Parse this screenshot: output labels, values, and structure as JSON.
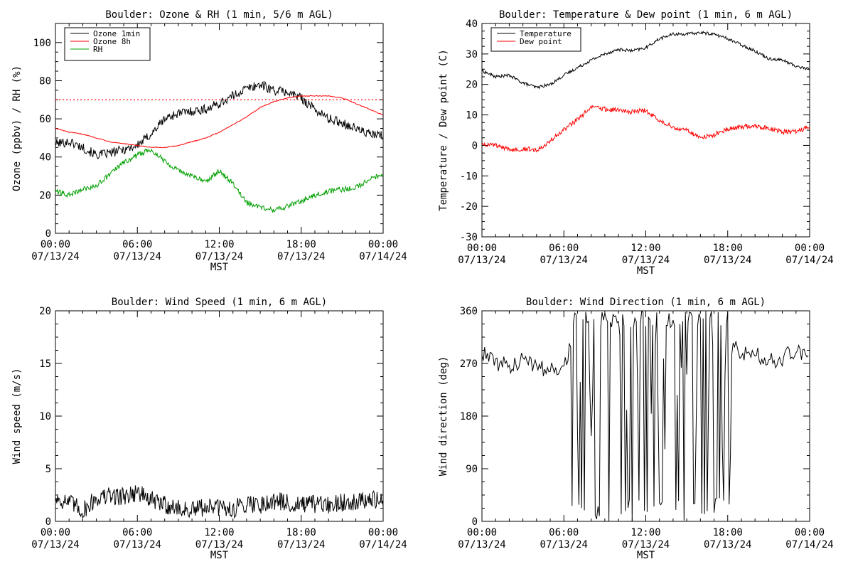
{
  "x_ticks": [
    {
      "time": "00:00",
      "date": "07/13/24"
    },
    {
      "time": "06:00",
      "date": "07/13/24"
    },
    {
      "time": "12:00",
      "date": "07/13/24"
    },
    {
      "time": "18:00",
      "date": "07/13/24"
    },
    {
      "time": "00:00",
      "date": "07/14/24"
    }
  ],
  "x_axis_label": "MST",
  "chart_data": [
    {
      "id": "ozone-rh",
      "type": "line",
      "title": "Boulder: Ozone & RH (1 min, 5/6 m AGL)",
      "xlabel": "MST",
      "ylabel": "Ozone (ppbv) / RH (%)",
      "xlim": [
        "07/13/24 00:00",
        "07/14/24 00:00"
      ],
      "ylim": [
        0,
        110
      ],
      "yticks": [
        0,
        20,
        40,
        60,
        80,
        100
      ],
      "legend": {
        "placement": "top-left",
        "entries": [
          "Ozone 1min",
          "Ozone 8h",
          "RH"
        ]
      },
      "reference_lines": [
        {
          "y": 70,
          "style": "dotted",
          "color": "#ff0000"
        }
      ],
      "x_hours": [
        0,
        1,
        2,
        3,
        4,
        5,
        6,
        7,
        8,
        9,
        10,
        11,
        12,
        13,
        14,
        15,
        16,
        17,
        18,
        19,
        20,
        21,
        22,
        23,
        24
      ],
      "series": [
        {
          "name": "Ozone 1min",
          "color": "#000000",
          "values": [
            47,
            48,
            45,
            41,
            42,
            44,
            46,
            52,
            60,
            63,
            64,
            65,
            68,
            72,
            76,
            78,
            75,
            74,
            71,
            65,
            60,
            58,
            55,
            52,
            51
          ]
        },
        {
          "name": "Ozone 8h",
          "color": "#ff0000",
          "values": [
            55,
            53,
            52,
            50,
            48,
            47,
            46,
            45,
            45,
            46,
            48,
            50,
            53,
            57,
            61,
            66,
            69,
            71,
            72,
            72,
            72,
            71,
            68,
            65,
            62
          ]
        },
        {
          "name": "RH",
          "color": "#00a000",
          "values": [
            22,
            20,
            23,
            25,
            31,
            37,
            41,
            44,
            38,
            33,
            30,
            27,
            33,
            26,
            16,
            14,
            12,
            14,
            17,
            20,
            22,
            23,
            24,
            28,
            31
          ]
        }
      ]
    },
    {
      "id": "temp-dew",
      "type": "line",
      "title": "Boulder: Temperature & Dew point (1 min, 6 m AGL)",
      "xlabel": "MST",
      "ylabel": "Temperature / Dew point (C)",
      "xlim": [
        "07/13/24 00:00",
        "07/14/24 00:00"
      ],
      "ylim": [
        -30,
        40
      ],
      "yticks": [
        -30,
        -20,
        -10,
        0,
        10,
        20,
        30,
        40
      ],
      "legend": {
        "placement": "top-left",
        "entries": [
          "Temperature",
          "Dew point"
        ]
      },
      "x_hours": [
        0,
        1,
        2,
        3,
        4,
        5,
        6,
        7,
        8,
        9,
        10,
        11,
        12,
        13,
        14,
        15,
        16,
        17,
        18,
        19,
        20,
        21,
        22,
        23,
        24
      ],
      "series": [
        {
          "name": "Temperature",
          "color": "#000000",
          "values": [
            24.5,
            22.5,
            23,
            20.5,
            19,
            20,
            23,
            25.5,
            28,
            30,
            31.5,
            31,
            32,
            35,
            36.5,
            36.5,
            37,
            36.5,
            35,
            33,
            31,
            28.5,
            28,
            26,
            25
          ]
        },
        {
          "name": "Dew point",
          "color": "#ff0000",
          "values": [
            0.5,
            0,
            -1.5,
            -1,
            -1.5,
            1.5,
            5,
            8.5,
            12.5,
            12,
            11.5,
            11,
            11.5,
            8,
            6,
            5,
            2.5,
            3.5,
            5.5,
            6,
            6.5,
            5.5,
            4.5,
            4.5,
            6
          ]
        }
      ]
    },
    {
      "id": "wind-speed",
      "type": "line",
      "title": "Boulder: Wind Speed (1 min, 6 m AGL)",
      "xlabel": "MST",
      "ylabel": "Wind speed (m/s)",
      "xlim": [
        "07/13/24 00:00",
        "07/14/24 00:00"
      ],
      "ylim": [
        0,
        20
      ],
      "yticks": [
        0,
        5,
        10,
        15,
        20
      ],
      "x_hours": [
        0,
        1,
        2,
        3,
        4,
        5,
        6,
        7,
        8,
        9,
        10,
        11,
        12,
        13,
        14,
        15,
        16,
        17,
        18,
        19,
        20,
        21,
        22,
        23,
        24
      ],
      "series": [
        {
          "name": "",
          "color": "#000000",
          "values": [
            2.2,
            1.8,
            1.0,
            2.2,
            2.4,
            2.4,
            2.8,
            2.0,
            1.6,
            1.2,
            1.0,
            1.4,
            1.3,
            1.1,
            1.8,
            1.6,
            2.0,
            1.7,
            1.5,
            1.6,
            1.5,
            1.8,
            2.0,
            2.0,
            2.0
          ]
        }
      ]
    },
    {
      "id": "wind-dir",
      "type": "line",
      "title": "Boulder: Wind Direction (1 min, 6 m AGL)",
      "xlabel": "MST",
      "ylabel": "Wind direction (deg)",
      "xlim": [
        "07/13/24 00:00",
        "07/14/24 00:00"
      ],
      "ylim": [
        0,
        360
      ],
      "yticks": [
        0,
        90,
        180,
        270,
        360
      ],
      "x_hours": [
        0,
        1,
        2,
        3,
        4,
        5,
        6,
        7,
        8,
        9,
        10,
        11,
        12,
        13,
        14,
        15,
        16,
        17,
        18,
        19,
        20,
        21,
        22,
        23,
        24
      ],
      "series": [
        {
          "name": "",
          "color": "#000000",
          "values": [
            290,
            270,
            265,
            275,
            265,
            260,
            265,
            340,
            120,
            330,
            180,
            300,
            20,
            340,
            60,
            200,
            10,
            340,
            300,
            290,
            285,
            275,
            280,
            290,
            290
          ]
        }
      ]
    }
  ]
}
